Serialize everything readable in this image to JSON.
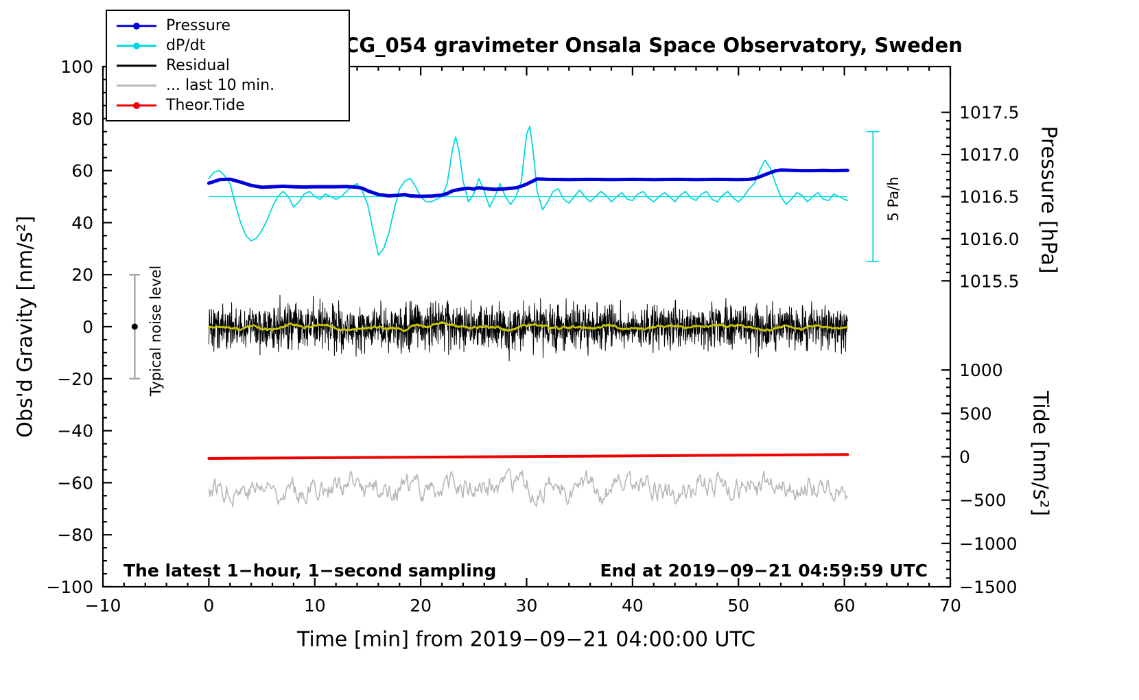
{
  "legend": [
    {
      "label": "Pressure",
      "color": "#0000d8",
      "marker": true
    },
    {
      "label": "dP/dt",
      "color": "#00d8e0",
      "marker": true
    },
    {
      "label": "Residual",
      "color": "#000000",
      "marker": false
    },
    {
      "label": "... last 10 min.",
      "color": "#b8b8b8",
      "marker": false
    },
    {
      "label": "Theor.Tide",
      "color": "#ee0000",
      "marker": true
    }
  ],
  "chart_data": {
    "type": "line",
    "title": "SCG_054 gravimeter Onsala Space Observatory, Sweden",
    "xlabel": "Time [min] from 2019−09−21 04:00:00 UTC",
    "x_axis": {
      "min": -10,
      "max": 70,
      "major_tick_step": 10,
      "minor_tick_step": 2
    },
    "y_left": {
      "label": "Obs'd Gravity [nm/s²]",
      "min": -100,
      "max": 100,
      "major_tick_step": 20,
      "minor_tick_step": 5
    },
    "y_right_pressure": {
      "label": "Pressure [hPa]",
      "ticks": [
        1015.5,
        1016.0,
        1016.5,
        1017.0,
        1017.5
      ],
      "minor_tick_step": 0.1,
      "map": {
        "hPa": 1016.5,
        "gravity": 50,
        "gravity_per_hPa": 32.4
      }
    },
    "y_right_tide": {
      "label": "Tide [nm/s²]",
      "ticks": [
        1000,
        500,
        0,
        -500,
        -1000,
        -1500
      ],
      "minor_tick_step": 100,
      "map": {
        "tide": 0,
        "gravity": -50,
        "tide_per_gravity": 30
      }
    },
    "annotations": {
      "noise_bar": {
        "x": -7,
        "gravity_range": [
          -20,
          20
        ],
        "dot_gravity": 0,
        "label": "Typical noise level",
        "color": "#a8a8a8"
      },
      "scale_bar": {
        "x": 62.7,
        "gravity_range": [
          25,
          75
        ],
        "label": "5 Pa/h",
        "color": "#00d8e0"
      },
      "sampling_note": "The latest 1−hour, 1−second sampling",
      "end_note": "End at 2019−09−21 04:59:59 UTC"
    },
    "series": [
      {
        "name": "Pressure",
        "kind": "line",
        "axis": "pressure",
        "unit": "hPa",
        "color": "#0000d8",
        "width": 5,
        "x": [
          0,
          0.5,
          1,
          2,
          3,
          4,
          5,
          6,
          7,
          8,
          9,
          10,
          11,
          12,
          13,
          14,
          14.5,
          15,
          16,
          17,
          18,
          18.5,
          19,
          20,
          21,
          22,
          22.5,
          23,
          24,
          24.5,
          25,
          25.5,
          26,
          27,
          28,
          29,
          29.5,
          30,
          30.5,
          31,
          32,
          34,
          36,
          38,
          40,
          42,
          44,
          46,
          48,
          50,
          51,
          51.5,
          52,
          53,
          53.5,
          54,
          55,
          56,
          57,
          58,
          59,
          60,
          60.3
        ],
        "values": [
          1016.66,
          1016.679,
          1016.701,
          1016.707,
          1016.673,
          1016.633,
          1016.611,
          1016.617,
          1016.623,
          1016.617,
          1016.614,
          1016.617,
          1016.617,
          1016.617,
          1016.62,
          1016.611,
          1016.599,
          1016.568,
          1016.525,
          1016.509,
          1016.519,
          1016.525,
          1016.509,
          1016.503,
          1016.506,
          1016.519,
          1016.537,
          1016.568,
          1016.593,
          1016.599,
          1016.59,
          1016.605,
          1016.596,
          1016.586,
          1016.593,
          1016.605,
          1016.623,
          1016.648,
          1016.679,
          1016.71,
          1016.704,
          1016.701,
          1016.704,
          1016.701,
          1016.704,
          1016.701,
          1016.704,
          1016.701,
          1016.704,
          1016.701,
          1016.704,
          1016.713,
          1016.735,
          1016.784,
          1016.806,
          1016.815,
          1016.812,
          1016.809,
          1016.809,
          1016.812,
          1016.809,
          1016.812,
          1016.812
        ]
      },
      {
        "name": "dP/dt",
        "kind": "line",
        "axis": "dpdt",
        "unit": "Pa/h",
        "color": "#00d8e0",
        "width": 1.8,
        "reference_line_value": 0,
        "map": {
          "value": 0,
          "gravity": 50,
          "gravity_per_unit": 10
        },
        "x": [
          0,
          0.5,
          1,
          1.5,
          2,
          2.5,
          3,
          3.5,
          4,
          4.5,
          5,
          5.5,
          6,
          6.5,
          7,
          7.5,
          8,
          8.5,
          9,
          9.5,
          10,
          10.5,
          11,
          11.5,
          12,
          12.5,
          13,
          13.5,
          14,
          14.5,
          15,
          15.5,
          16,
          16.5,
          17,
          17.5,
          18,
          18.5,
          19,
          19.5,
          20,
          20.5,
          21,
          21.5,
          22,
          22.5,
          23,
          23.3,
          23.6,
          24,
          24.5,
          25,
          25.5,
          26,
          26.5,
          27,
          27.5,
          28,
          28.5,
          29,
          29.5,
          30,
          30.3,
          30.6,
          31,
          31.5,
          32,
          32.5,
          33,
          33.5,
          34,
          34.5,
          35,
          35.5,
          36,
          36.5,
          37,
          37.5,
          38,
          38.5,
          39,
          39.5,
          40,
          40.5,
          41,
          41.5,
          42,
          42.5,
          43,
          43.5,
          44,
          44.5,
          45,
          45.5,
          46,
          46.5,
          47,
          47.5,
          48,
          48.5,
          49,
          49.5,
          50,
          50.5,
          51,
          51.5,
          52,
          52.5,
          53,
          53.5,
          54,
          54.5,
          55,
          55.5,
          56,
          56.5,
          57,
          57.5,
          58,
          58.5,
          59,
          59.5,
          60,
          60.3
        ],
        "values": [
          0.7,
          0.95,
          1.0,
          0.8,
          0.5,
          -0.3,
          -1.0,
          -1.5,
          -1.7,
          -1.6,
          -1.3,
          -0.9,
          -0.4,
          0.0,
          0.2,
          0.0,
          -0.4,
          -0.2,
          0.1,
          0.2,
          0.0,
          -0.1,
          0.1,
          0.0,
          -0.1,
          0.0,
          0.2,
          0.4,
          0.5,
          0.2,
          -0.3,
          -1.3,
          -2.25,
          -2.0,
          -1.4,
          -0.5,
          0.3,
          0.6,
          0.7,
          0.4,
          0.0,
          -0.2,
          -0.2,
          -0.1,
          0.0,
          0.5,
          1.8,
          2.3,
          1.8,
          0.6,
          -0.2,
          0.1,
          0.7,
          0.2,
          -0.4,
          0.0,
          0.5,
          0.0,
          -0.3,
          0.0,
          0.6,
          2.4,
          2.7,
          1.8,
          0.2,
          -0.5,
          -0.2,
          0.2,
          0.3,
          -0.1,
          -0.25,
          0.0,
          0.25,
          0.0,
          -0.2,
          0.0,
          0.2,
          0.05,
          -0.2,
          0.0,
          0.15,
          -0.1,
          -0.15,
          0.1,
          0.2,
          -0.05,
          -0.2,
          0.0,
          0.15,
          0.0,
          -0.2,
          0.05,
          0.2,
          -0.05,
          -0.15,
          0.1,
          0.2,
          -0.1,
          -0.2,
          0.05,
          0.2,
          -0.05,
          -0.2,
          0.0,
          0.3,
          0.5,
          1.0,
          1.4,
          1.1,
          0.5,
          0.0,
          -0.3,
          -0.1,
          0.15,
          0.05,
          -0.2,
          0.0,
          0.15,
          -0.1,
          -0.15,
          0.1,
          0.0,
          -0.1,
          -0.15
        ]
      },
      {
        "name": "Residual",
        "kind": "noise",
        "axis": "gravity",
        "unit": "nm/s²",
        "color": "#000000",
        "width": 1,
        "mean": 0,
        "std": 4.2,
        "clamp": 13.5,
        "n": 2300,
        "seed": 20190921,
        "x_start": 0,
        "x_end": 60.3
      },
      {
        "name": "Residual smoothed",
        "kind": "smooth-of-noise",
        "source": 2,
        "color": "#c6c600",
        "width": 2.5,
        "window": 25
      },
      {
        "name": "... last 10 min.",
        "kind": "osc-noise",
        "axis": "gravity",
        "unit": "nm/s²",
        "color": "#b8b8b8",
        "width": 1.6,
        "mean": -62,
        "std": 3.2,
        "clamp": 9.5,
        "n": 720,
        "seed": 77,
        "x_start": 0,
        "x_end": 60.3
      },
      {
        "name": "Theor.Tide",
        "kind": "line",
        "axis": "tide",
        "unit": "nm/s²",
        "color": "#ee0000",
        "width": 4,
        "x": [
          0,
          30,
          60.3
        ],
        "values": [
          -20,
          2,
          25
        ]
      }
    ]
  }
}
